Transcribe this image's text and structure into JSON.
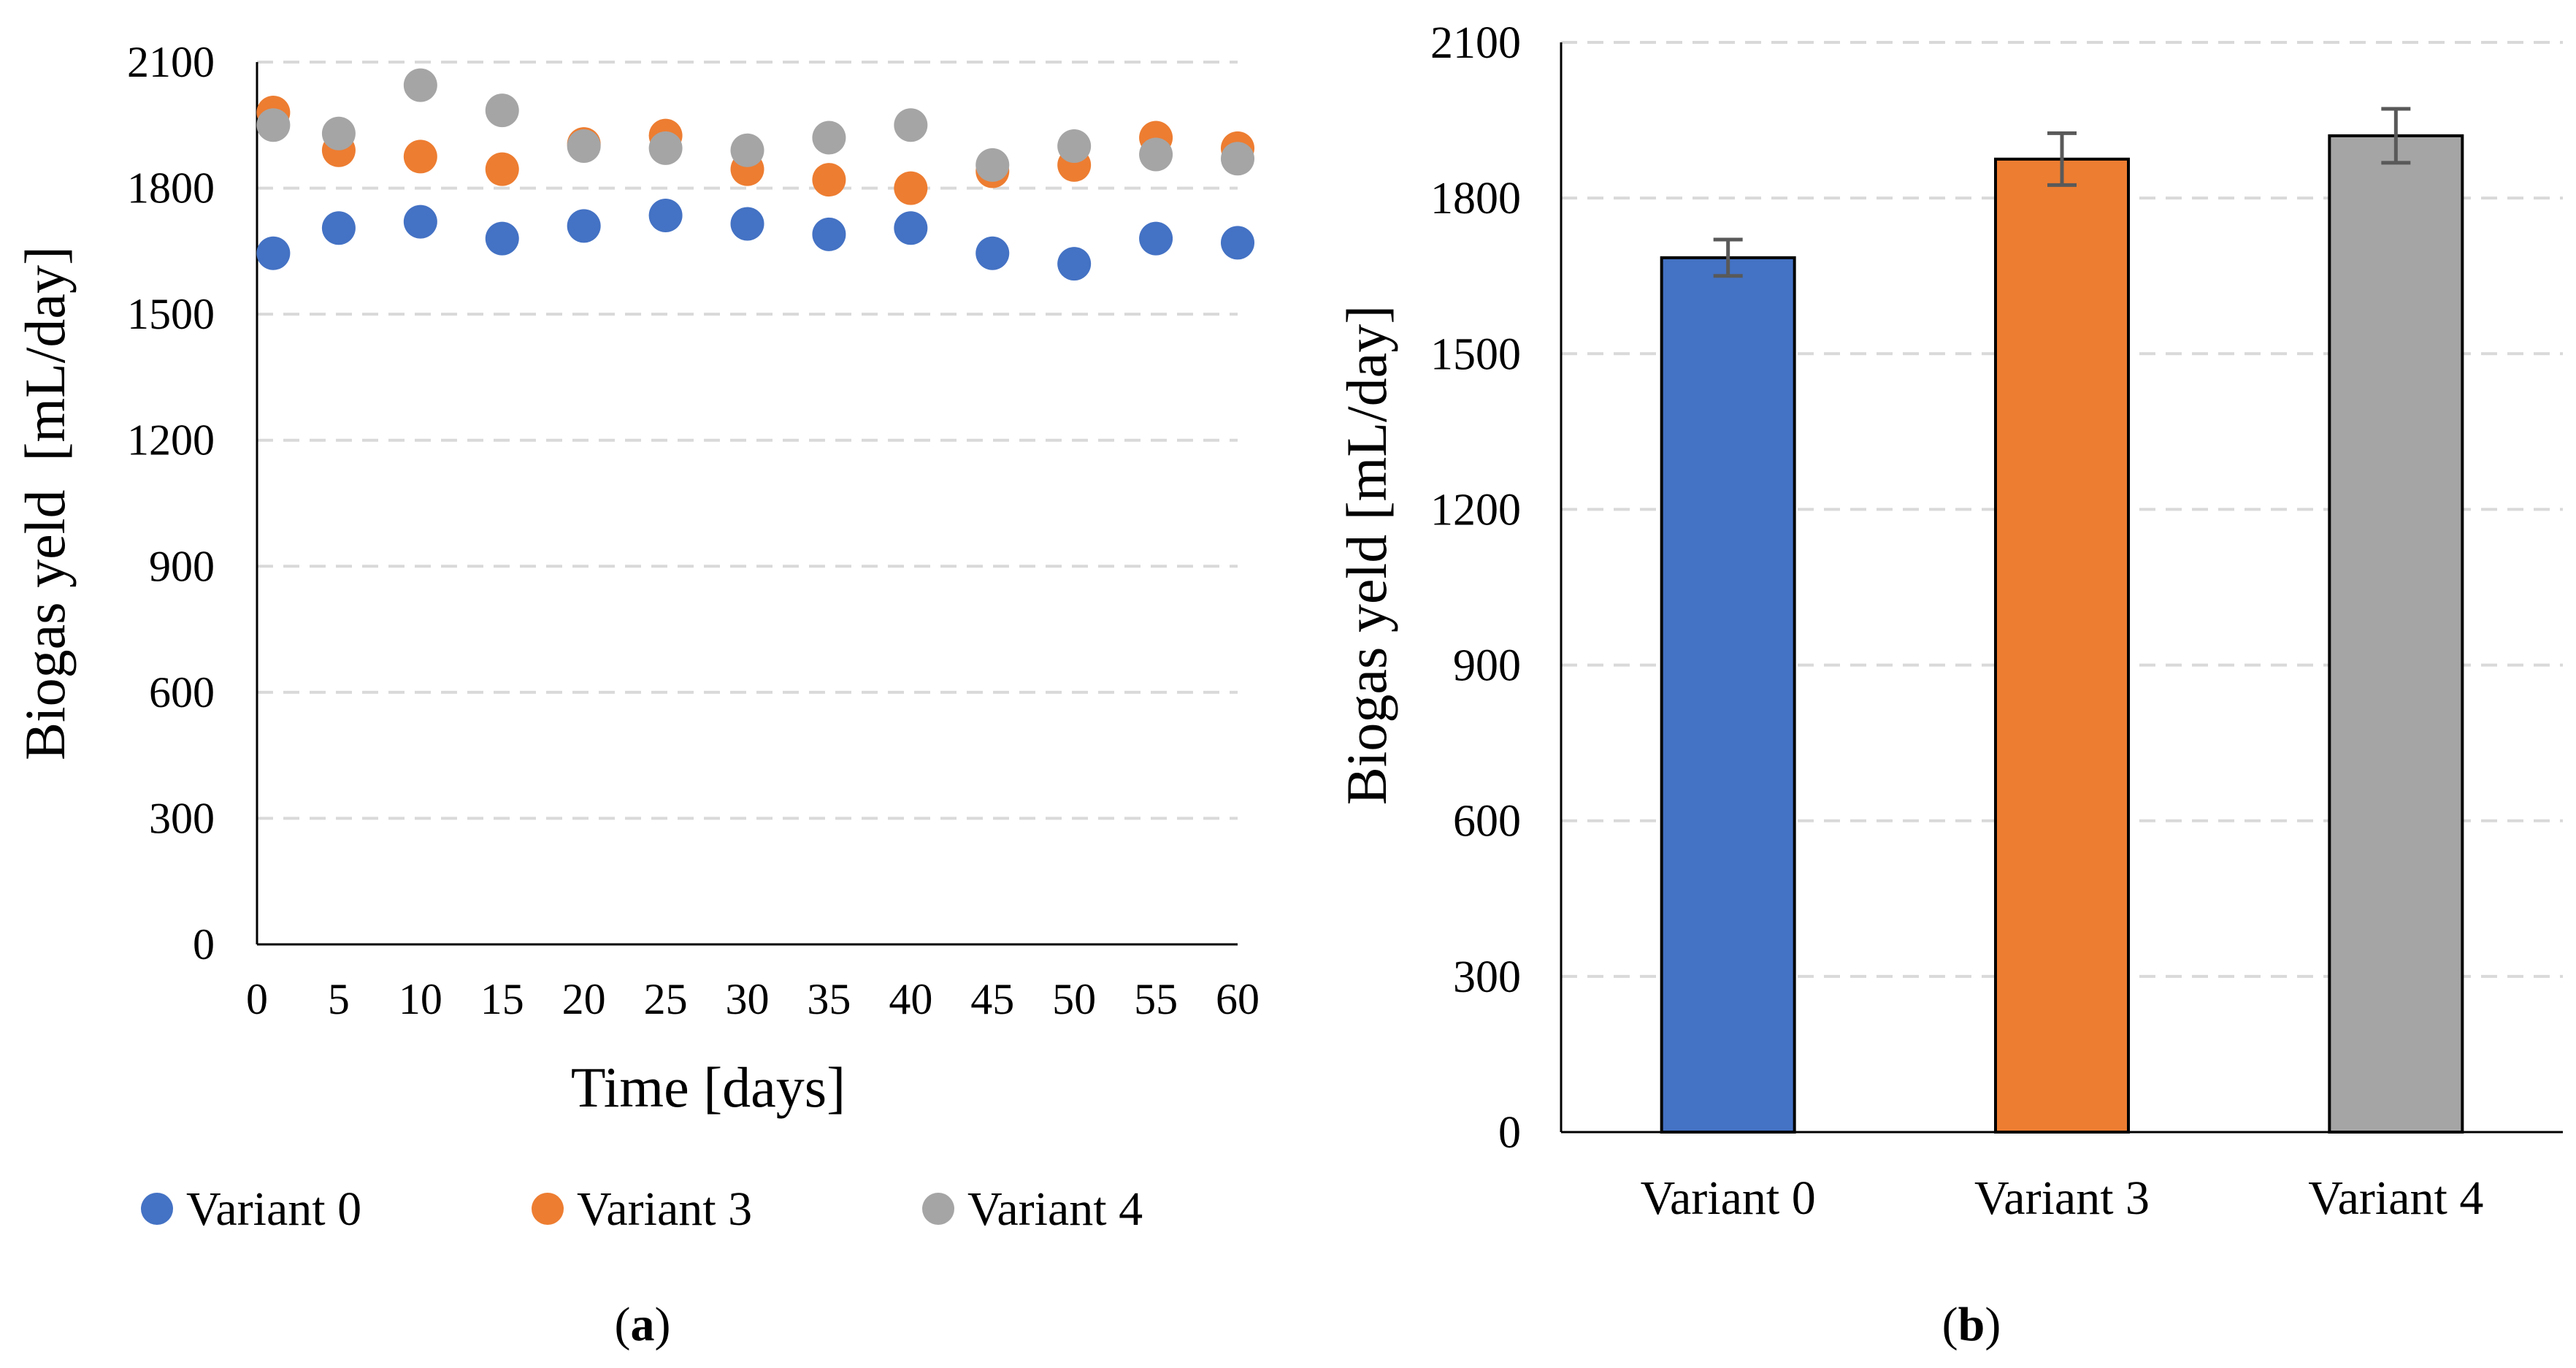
{
  "chart_data": [
    {
      "type": "scatter",
      "panel_label": "(a)",
      "panel_letter": "a",
      "xlabel": "Time [days]",
      "ylabel": "Biogas yeld  [mL/day]",
      "xlim": [
        0,
        60
      ],
      "ylim": [
        0,
        2100
      ],
      "xticks": [
        0,
        5,
        10,
        15,
        20,
        25,
        30,
        35,
        40,
        45,
        50,
        55,
        60
      ],
      "yticks": [
        0,
        300,
        600,
        900,
        1200,
        1500,
        1800,
        2100
      ],
      "grid": "horizontal dashed",
      "legend_position": "bottom",
      "x": [
        1,
        5,
        10,
        15,
        20,
        25,
        30,
        35,
        40,
        45,
        50,
        55,
        60
      ],
      "series": [
        {
          "name": "Variant 0",
          "color": "#4472C4",
          "values": [
            1645,
            1705,
            1720,
            1680,
            1710,
            1735,
            1715,
            1690,
            1705,
            1645,
            1620,
            1680,
            1670
          ]
        },
        {
          "name": "Variant 3",
          "color": "#ED7D31",
          "values": [
            1980,
            1890,
            1875,
            1845,
            1905,
            1925,
            1845,
            1820,
            1800,
            1840,
            1855,
            1920,
            1895
          ]
        },
        {
          "name": "Variant 4",
          "color": "#A5A5A5",
          "values": [
            1950,
            1930,
            2045,
            1985,
            1900,
            1895,
            1890,
            1920,
            1950,
            1855,
            1900,
            1880,
            1870
          ]
        }
      ]
    },
    {
      "type": "bar",
      "panel_label": "(b)",
      "panel_letter": "b",
      "xlabel": "",
      "ylabel": "Biogas yeld [mL/day]",
      "ylim": [
        0,
        2100
      ],
      "yticks": [
        0,
        300,
        600,
        900,
        1200,
        1500,
        1800,
        2100
      ],
      "grid": "horizontal dashed",
      "categories": [
        "Variant 0",
        "Variant 3",
        "Variant 4"
      ],
      "values": [
        1685,
        1875,
        1920
      ],
      "errors": [
        35,
        50,
        52
      ],
      "colors": [
        "#4472C4",
        "#ED7D31",
        "#A5A5A5"
      ]
    }
  ]
}
